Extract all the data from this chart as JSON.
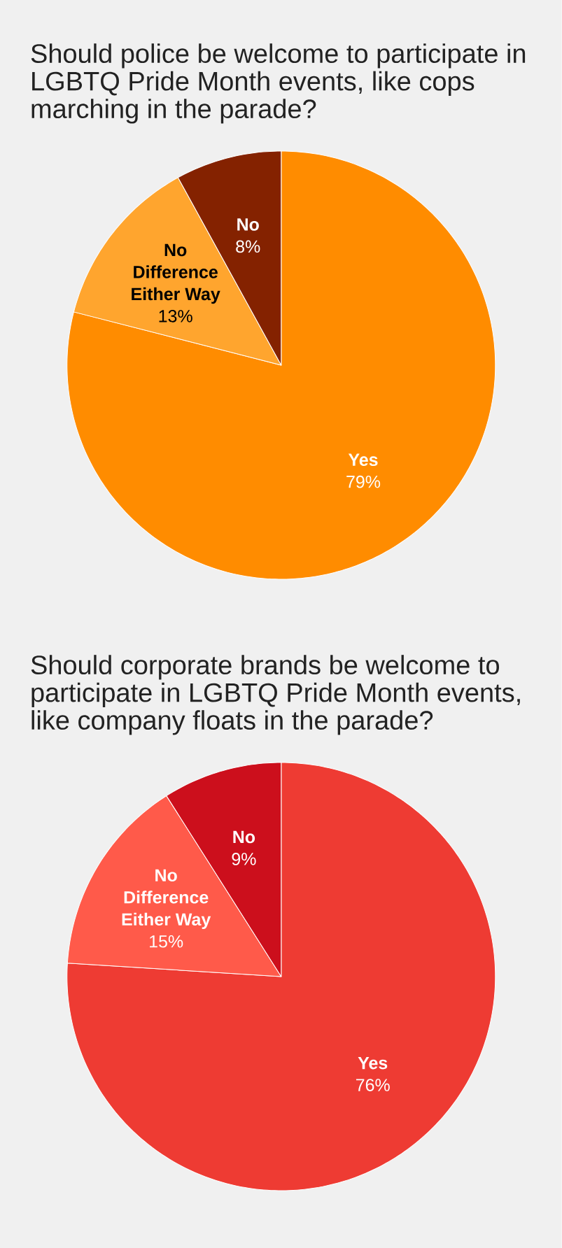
{
  "chart_data": [
    {
      "type": "pie",
      "title": "Should police be welcome to participate in LGBTQ Pride Month events, like cops marching in the parade?",
      "categories": [
        "Yes",
        "No Difference Either Way",
        "No"
      ],
      "values": [
        79,
        13,
        8
      ],
      "colors": [
        "#ff8c00",
        "#ffa52e",
        "#842200"
      ],
      "value_labels": [
        "79%",
        "13%",
        "8%"
      ]
    },
    {
      "type": "pie",
      "title": "Should corporate brands be welcome to participate in LGBTQ Pride Month events, like company floats in the parade?",
      "categories": [
        "Yes",
        "No Difference Either Way",
        "No"
      ],
      "values": [
        76,
        15,
        9
      ],
      "colors": [
        "#ee3b33",
        "#ff5a4a",
        "#cc0f1c"
      ],
      "value_labels": [
        "76%",
        "15%",
        "9%"
      ]
    }
  ]
}
